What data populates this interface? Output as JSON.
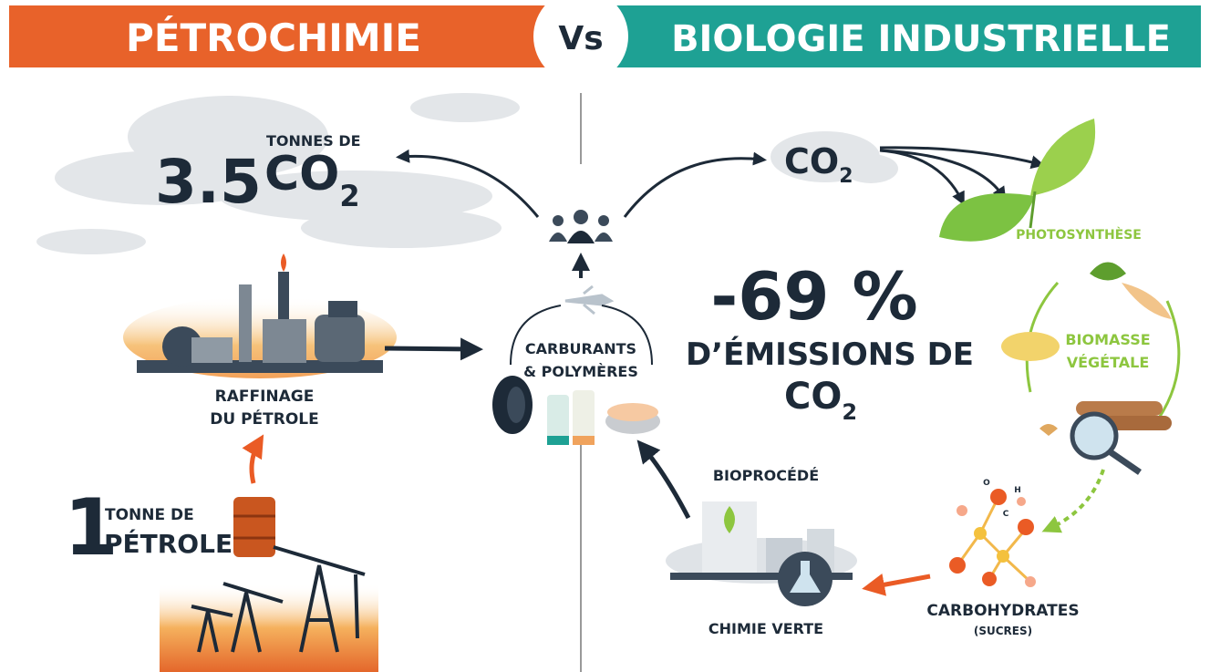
{
  "header": {
    "left_title": "PÉTROCHIMIE",
    "versus": "Vs",
    "right_title": "BIOLOGIE INDUSTRIELLE"
  },
  "petrochemistry": {
    "emissions": {
      "amount": "3.5",
      "unit": "TONNES DE",
      "gas": "CO",
      "gas_subscript": "2"
    },
    "refining": {
      "lines": [
        "RAFFINAGE",
        "DU PÉTROLE"
      ]
    },
    "input": {
      "amount": "1",
      "unit_lines": [
        "TONNE DE",
        "PÉTROLE"
      ]
    }
  },
  "products": {
    "lines": [
      "CARBURANTS",
      "& POLYMÈRES"
    ]
  },
  "industrial_biology": {
    "co2": {
      "gas": "CO",
      "gas_subscript": "2"
    },
    "photosynthesis": "PHOTOSYNTHÈSE",
    "biomass": {
      "lines": [
        "BIOMASSE",
        "VÉGÉTALE"
      ]
    },
    "reduction": {
      "value": "-69 %",
      "text": "D’ÉMISSIONS DE",
      "gas": "CO",
      "gas_subscript": "2"
    },
    "bioprocess": "BIOPROCÉDÉ",
    "green_chemistry": "CHIMIE VERTE",
    "carbohydrates": "CARBOHYDRATES",
    "sugars": "(SUCRES)",
    "molecule_labels": [
      "O",
      "H",
      "C"
    ]
  }
}
